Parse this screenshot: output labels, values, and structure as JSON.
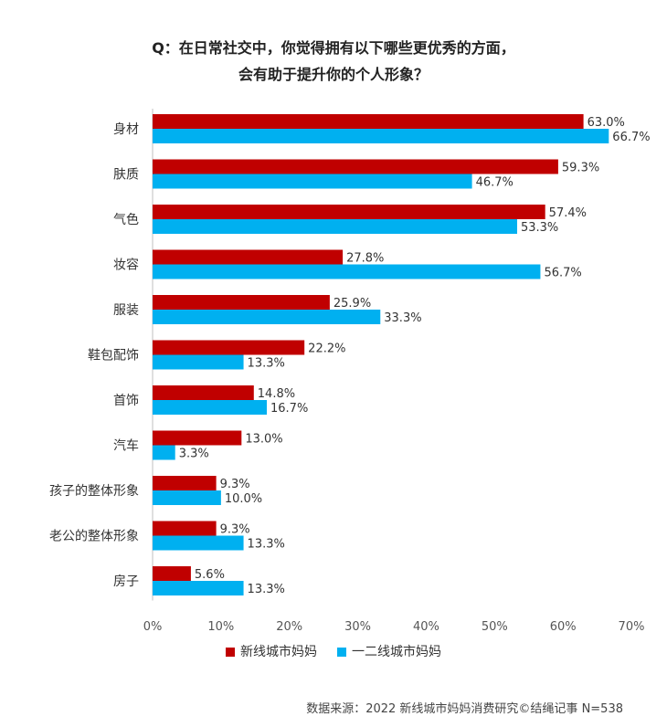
{
  "title": {
    "line1": "Q：在日常社交中，你觉得拥有以下哪些更优秀的方面，",
    "line2": "会有助于提升你的个人形象？"
  },
  "source": "数据来源：2022 新线城市妈妈消费研究©结绳记事 N=538",
  "colors": {
    "series1": "#C00000",
    "series2": "#00B0F0"
  },
  "chart_data": {
    "type": "bar",
    "orientation": "horizontal",
    "categories": [
      "身材",
      "肤质",
      "气色",
      "妆容",
      "服装",
      "鞋包配饰",
      "首饰",
      "汽车",
      "孩子的整体形象",
      "老公的整体形象",
      "房子"
    ],
    "series": [
      {
        "name": "新线城市妈妈",
        "values": [
          63.0,
          59.3,
          57.4,
          27.8,
          25.9,
          22.2,
          14.8,
          13.0,
          9.3,
          9.3,
          5.6
        ]
      },
      {
        "name": "一二线城市妈妈",
        "values": [
          66.7,
          46.7,
          53.3,
          56.7,
          33.3,
          13.3,
          16.7,
          3.3,
          10.0,
          13.3,
          13.3
        ]
      }
    ],
    "xlim": [
      0,
      70
    ],
    "xticks": [
      0,
      10,
      20,
      30,
      40,
      50,
      60,
      70
    ],
    "value_suffix": "%",
    "tick_suffix": "%",
    "legend_position": "bottom",
    "grid": false
  }
}
